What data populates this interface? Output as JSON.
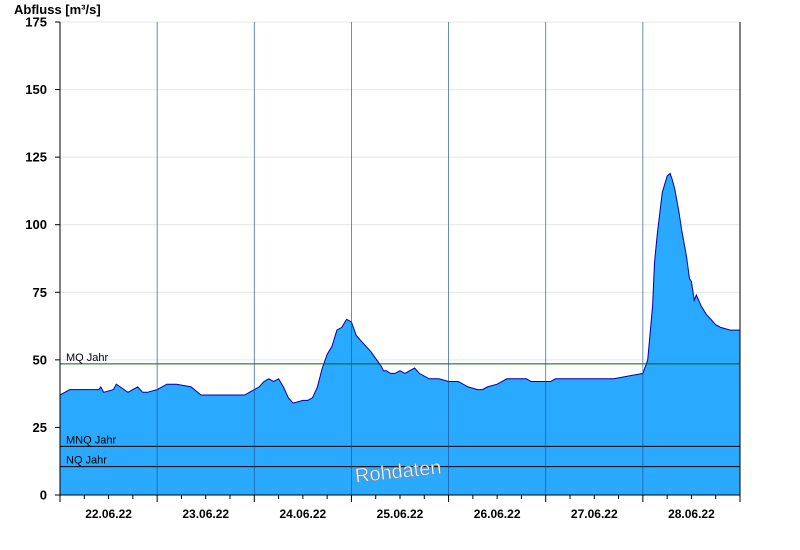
{
  "chart_data": {
    "type": "area",
    "ylabel": "Abfluss [m³/s]",
    "xlabel": "",
    "ylim": [
      0,
      175
    ],
    "yticks": [
      0,
      25,
      50,
      75,
      100,
      125,
      150,
      175
    ],
    "xlim": [
      0,
      7
    ],
    "day_boundaries": [
      0,
      1,
      2,
      3,
      4,
      5,
      6,
      7
    ],
    "xtick_labels": [
      "22.06.22",
      "23.06.22",
      "24.06.22",
      "25.06.22",
      "26.06.22",
      "27.06.22",
      "28.06.22"
    ],
    "grid": "horizontal",
    "watermark": "Rohdaten",
    "colors": {
      "fill": "#29a9ff",
      "line": "#0000a0",
      "mq": "#006400",
      "ref": "#000000",
      "grid": "#e6e6e6"
    },
    "reference_lines": [
      {
        "name": "MQ Jahr",
        "value": 48.5
      },
      {
        "name": "MNQ Jahr",
        "value": 18
      },
      {
        "name": "NQ Jahr",
        "value": 10.5
      }
    ],
    "series": [
      {
        "x": [
          0,
          0.05,
          0.1,
          0.4,
          0.42,
          0.45,
          0.55,
          0.58,
          0.62,
          0.7,
          0.75,
          0.8,
          0.85,
          0.9,
          1.0,
          1.05,
          1.1,
          1.2,
          1.35,
          1.45,
          1.5,
          1.6,
          1.7,
          1.9,
          2.0,
          2.05,
          2.1,
          2.15,
          2.2,
          2.25,
          2.3,
          2.35,
          2.4,
          2.5,
          2.55,
          2.6,
          2.65,
          2.7,
          2.75,
          2.8,
          2.85,
          2.9,
          2.95,
          3.0,
          3.05,
          3.1,
          3.15,
          3.2,
          3.3,
          3.33,
          3.36,
          3.4,
          3.45,
          3.5,
          3.55,
          3.6,
          3.65,
          3.7,
          3.8,
          3.9,
          4.0,
          4.1,
          4.2,
          4.3,
          4.35,
          4.4,
          4.5,
          4.6,
          4.7,
          4.8,
          4.85,
          4.9,
          5.0,
          5.05,
          5.1,
          5.2,
          5.5,
          5.7,
          6.0,
          6.05,
          6.1,
          6.12,
          6.15,
          6.2,
          6.25,
          6.28,
          6.3,
          6.33,
          6.37,
          6.4,
          6.45,
          6.48,
          6.5,
          6.53,
          6.55,
          6.6,
          6.65,
          6.7,
          6.75,
          6.8,
          6.9,
          7.0
        ],
        "y": [
          37,
          38,
          39,
          39,
          40,
          38,
          39,
          41,
          40,
          38,
          39,
          40,
          38,
          38,
          39,
          40,
          41,
          41,
          40,
          37,
          37,
          37,
          37,
          37,
          39,
          40,
          42,
          43,
          42,
          43,
          40,
          36,
          34,
          35,
          35,
          36,
          40,
          47,
          52,
          55,
          61,
          62,
          65,
          64,
          59,
          57,
          55,
          53,
          48,
          46,
          46,
          45,
          45,
          46,
          45,
          46,
          47,
          45,
          43,
          43,
          42,
          42,
          40,
          39,
          39,
          40,
          41,
          43,
          43,
          43,
          42,
          42,
          42,
          42,
          43,
          43,
          43,
          43,
          45,
          50,
          70,
          86,
          97,
          112,
          118,
          119,
          117,
          113,
          105,
          98,
          88,
          80,
          79,
          72,
          74,
          70,
          67,
          65,
          63,
          62,
          61,
          61
        ]
      }
    ]
  }
}
